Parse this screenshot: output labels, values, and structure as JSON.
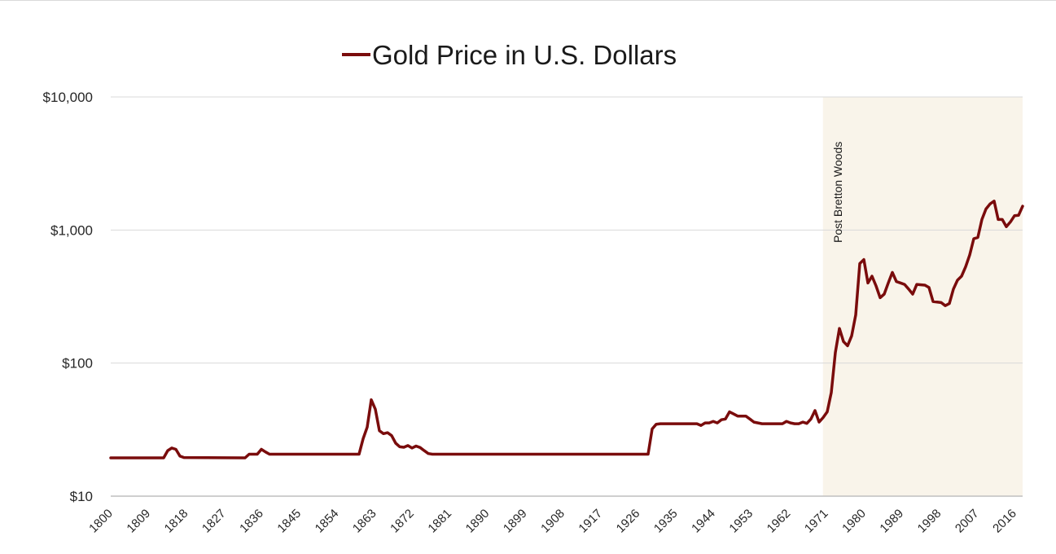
{
  "chart_data": {
    "type": "line",
    "title": "Gold Price in U.S. Dollars",
    "xlabel": "",
    "ylabel": "",
    "y_scale": "log",
    "ylim": [
      10,
      10000
    ],
    "xlim": [
      1800,
      2018
    ],
    "grid": "horizontal",
    "legend": "top-center",
    "colors": {
      "line": "#7a0c0c",
      "shaded_region": "#f9f4ea",
      "grid": "#d9d9d9",
      "axis": "#bfbfbf"
    },
    "y_ticks": [
      {
        "value": 10,
        "label": "$10"
      },
      {
        "value": 100,
        "label": "$100"
      },
      {
        "value": 1000,
        "label": "$1,000"
      },
      {
        "value": 10000,
        "label": "$10,000"
      }
    ],
    "x_ticks": [
      "1800",
      "1809",
      "1818",
      "1827",
      "1836",
      "1845",
      "1854",
      "1863",
      "1872",
      "1881",
      "1890",
      "1899",
      "1908",
      "1917",
      "1926",
      "1935",
      "1944",
      "1953",
      "1962",
      "1971",
      "1980",
      "1989",
      "1998",
      "2007",
      "2016"
    ],
    "shaded_region": {
      "x_start": 1971,
      "x_end": 2018,
      "label": "Post Bretton Woods"
    },
    "series": [
      {
        "name": "Gold Price in U.S. Dollars",
        "points": [
          [
            1800,
            19.39
          ],
          [
            1813,
            19.39
          ],
          [
            1814,
            22
          ],
          [
            1815,
            23
          ],
          [
            1816,
            22.5
          ],
          [
            1817,
            20
          ],
          [
            1818,
            19.5
          ],
          [
            1833,
            19.39
          ],
          [
            1834,
            20.67
          ],
          [
            1836,
            20.67
          ],
          [
            1837,
            22.5
          ],
          [
            1838,
            21.5
          ],
          [
            1839,
            20.67
          ],
          [
            1861,
            20.67
          ],
          [
            1862,
            27
          ],
          [
            1863,
            33
          ],
          [
            1864,
            53
          ],
          [
            1865,
            45
          ],
          [
            1866,
            31
          ],
          [
            1867,
            29.5
          ],
          [
            1868,
            30
          ],
          [
            1869,
            28.5
          ],
          [
            1870,
            25
          ],
          [
            1871,
            23.5
          ],
          [
            1872,
            23.3
          ],
          [
            1873,
            24
          ],
          [
            1874,
            23
          ],
          [
            1875,
            23.8
          ],
          [
            1876,
            23.2
          ],
          [
            1877,
            22
          ],
          [
            1878,
            20.9
          ],
          [
            1879,
            20.67
          ],
          [
            1932,
            20.67
          ],
          [
            1933,
            32
          ],
          [
            1934,
            34.7
          ],
          [
            1935,
            35
          ],
          [
            1944,
            35
          ],
          [
            1945,
            34
          ],
          [
            1946,
            35.5
          ],
          [
            1947,
            35.5
          ],
          [
            1948,
            36.5
          ],
          [
            1949,
            35.5
          ],
          [
            1950,
            37.5
          ],
          [
            1951,
            38
          ],
          [
            1952,
            43
          ],
          [
            1953,
            41.5
          ],
          [
            1954,
            40
          ],
          [
            1956,
            40
          ],
          [
            1957,
            38
          ],
          [
            1958,
            36
          ],
          [
            1960,
            35
          ],
          [
            1965,
            35
          ],
          [
            1966,
            36.5
          ],
          [
            1967,
            35.5
          ],
          [
            1968,
            35
          ],
          [
            1969,
            35
          ],
          [
            1970,
            36
          ],
          [
            1971,
            35.2
          ],
          [
            1972,
            38
          ],
          [
            1973,
            44
          ],
          [
            1974,
            36
          ],
          [
            1975,
            39
          ],
          [
            1976,
            43
          ],
          [
            1977,
            60
          ],
          [
            1978,
            120
          ],
          [
            1979,
            182
          ],
          [
            1980,
            145
          ],
          [
            1981,
            135
          ],
          [
            1982,
            160
          ],
          [
            1983,
            230
          ],
          [
            1984,
            560
          ],
          [
            1985,
            600
          ],
          [
            1986,
            400
          ],
          [
            1987,
            450
          ],
          [
            1988,
            380
          ],
          [
            1989,
            310
          ],
          [
            1990,
            330
          ],
          [
            1991,
            400
          ],
          [
            1992,
            480
          ],
          [
            1993,
            410
          ],
          [
            1994,
            400
          ],
          [
            1995,
            390
          ],
          [
            1996,
            360
          ],
          [
            1997,
            330
          ],
          [
            1998,
            390
          ],
          [
            2000,
            385
          ],
          [
            2001,
            370
          ],
          [
            2002,
            290
          ],
          [
            2004,
            285
          ],
          [
            2005,
            270
          ],
          [
            2006,
            280
          ],
          [
            2007,
            360
          ],
          [
            2008,
            420
          ],
          [
            2009,
            450
          ],
          [
            2010,
            530
          ],
          [
            2011,
            650
          ],
          [
            2012,
            860
          ],
          [
            2013,
            880
          ],
          [
            2014,
            1200
          ],
          [
            2015,
            1440
          ],
          [
            2016,
            1570
          ],
          [
            2017,
            1650
          ],
          [
            2018,
            1200
          ],
          [
            2019,
            1200
          ],
          [
            2020,
            1060
          ],
          [
            2021,
            1150
          ],
          [
            2022,
            1280
          ],
          [
            2023,
            1290
          ],
          [
            2024,
            1510
          ]
        ]
      }
    ]
  }
}
